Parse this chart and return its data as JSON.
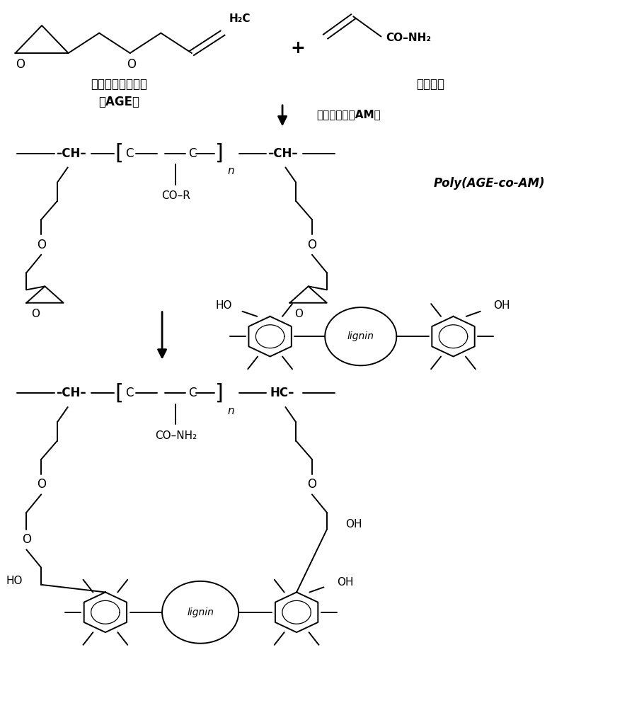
{
  "bg_color": "#ffffff",
  "line_color": "#000000",
  "fig_width": 8.87,
  "fig_height": 10.0,
  "age_cn_line1": "丙烯基缩水甘油醚",
  "age_cn_line2": "（AGE）",
  "am_cn": "丙烯酰胺",
  "catalyst": "过二硫酸销（AM）",
  "poly_label": "Poly(AGE-co-AM)",
  "lignin": "lignin",
  "co_r": "CO–R",
  "co_nh2": "CO–NH₂",
  "ho": "HO",
  "oh": "OH",
  "n": "n"
}
